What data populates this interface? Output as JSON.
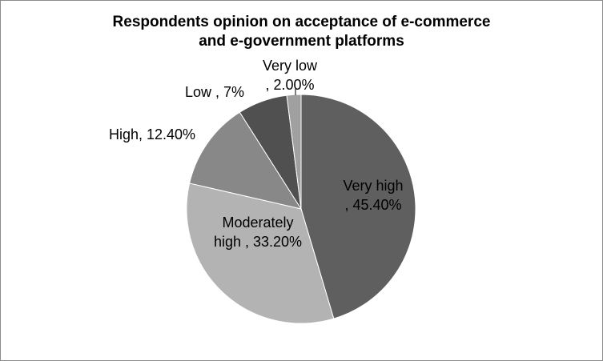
{
  "chart_data": {
    "type": "pie",
    "title_lines": [
      "Respondents opinion on acceptance of e-commerce",
      "and e-government platforms"
    ],
    "slices": [
      {
        "category": "Very high",
        "value": 45.4,
        "label_lines": [
          "Very high",
          ", 45.40%"
        ],
        "color": "#5f5f5f"
      },
      {
        "category": "Moderately high",
        "value": 33.2,
        "label_lines": [
          "Moderately",
          "high , 33.20%"
        ],
        "color": "#b3b3b3"
      },
      {
        "category": "High",
        "value": 12.4,
        "label_lines": [
          "High, 12.40%"
        ],
        "color": "#888888"
      },
      {
        "category": "Low",
        "value": 7,
        "label_lines": [
          "Low , 7%"
        ],
        "color": "#505050"
      },
      {
        "category": "Very low",
        "value": 2,
        "label_lines": [
          "Very low",
          ", 2.00%"
        ],
        "color": "#a0a0a0"
      }
    ],
    "start_angle": "12 o'clock",
    "direction": "clockwise",
    "legend": "none"
  }
}
